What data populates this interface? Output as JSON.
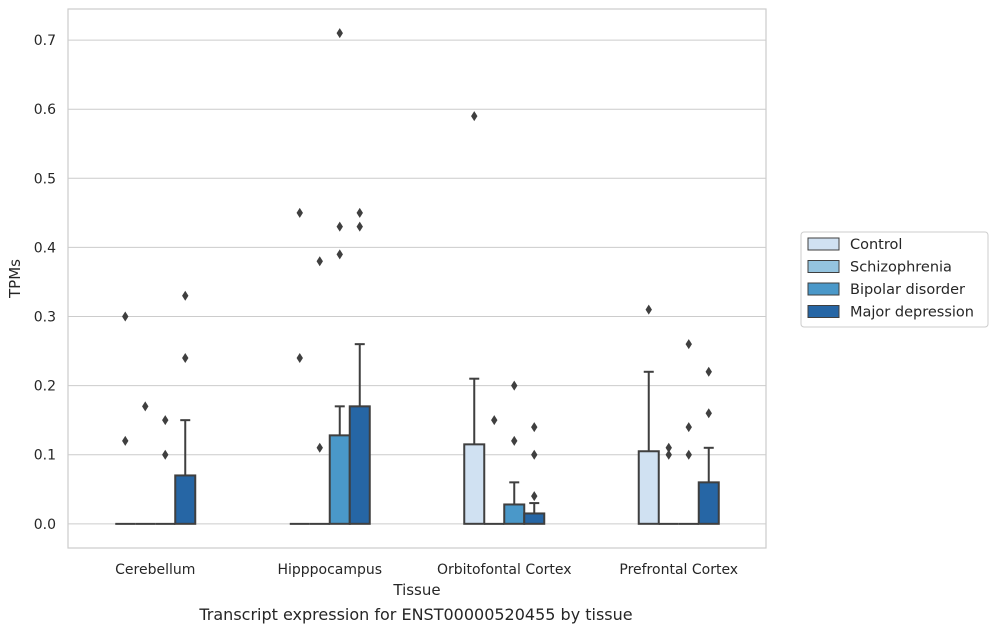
{
  "caption": "Transcript expression for ENST00000520455 by tissue",
  "colors": {
    "Control": "#d0e1f2",
    "Schizophrenia": "#94c4df",
    "Bipolar disorder": "#4a98c9",
    "Major depression": "#2666a5",
    "grid": "#cccccc",
    "frame": "#cccccc",
    "edge": "#3f3f3f"
  },
  "chart_data": {
    "type": "bar",
    "xlabel": "Tissue",
    "ylabel": "TPMs",
    "ylim": [
      -0.035,
      0.745
    ],
    "yticks": [
      0.0,
      0.1,
      0.2,
      0.3,
      0.4,
      0.5,
      0.6,
      0.7
    ],
    "ytick_labels": [
      "0.0",
      "0.1",
      "0.2",
      "0.3",
      "0.4",
      "0.5",
      "0.6",
      "0.7"
    ],
    "grid": true,
    "legend_position": "right",
    "categories": [
      "Cerebellum",
      "Hipppocampus",
      "Orbitofontal Cortex",
      "Prefrontal Cortex"
    ],
    "series": [
      {
        "name": "Control",
        "values": [
          0.0,
          0.0,
          0.115,
          0.105
        ],
        "whisker_high": [
          null,
          null,
          0.21,
          0.22
        ],
        "outliers": [
          [
            0.3,
            0.12
          ],
          [
            0.45,
            0.24
          ],
          [
            0.59
          ],
          [
            0.31
          ]
        ]
      },
      {
        "name": "Schizophrenia",
        "values": [
          0.0,
          0.0,
          0.0,
          0.0
        ],
        "whisker_high": [
          null,
          null,
          null,
          null
        ],
        "outliers": [
          [
            0.17
          ],
          [
            0.38,
            0.11
          ],
          [
            0.15
          ],
          [
            0.11,
            0.1
          ]
        ]
      },
      {
        "name": "Bipolar disorder",
        "values": [
          0.0,
          0.128,
          0.028,
          0.0
        ],
        "whisker_high": [
          null,
          0.17,
          0.06,
          null
        ],
        "outliers": [
          [
            0.15,
            0.1
          ],
          [
            0.71,
            0.43,
            0.39
          ],
          [
            0.2,
            0.12
          ],
          [
            0.26,
            0.14,
            0.1
          ]
        ]
      },
      {
        "name": "Major depression",
        "values": [
          0.07,
          0.17,
          0.015,
          0.06
        ],
        "whisker_high": [
          0.15,
          0.26,
          0.03,
          0.11
        ],
        "outliers": [
          [
            0.33,
            0.24
          ],
          [
            0.45,
            0.43
          ],
          [
            0.14,
            0.1,
            0.04
          ],
          [
            0.22,
            0.16
          ]
        ]
      }
    ]
  }
}
